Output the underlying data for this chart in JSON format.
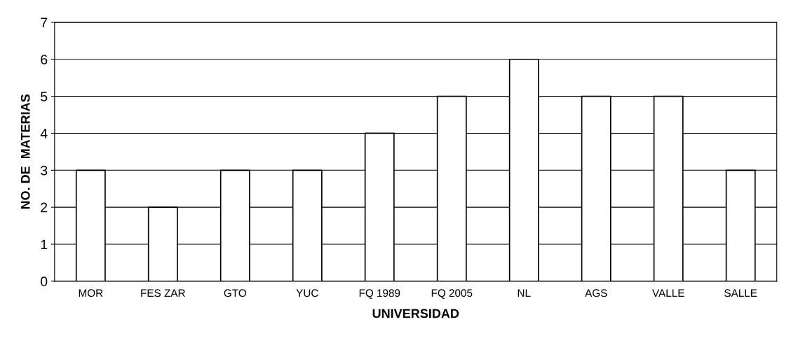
{
  "chart_data": {
    "type": "bar",
    "xlabel": "UNIVERSIDAD",
    "ylabel": "NO. DE  MATERIAS",
    "categories": [
      "MOR",
      "FES ZAR",
      "GTO",
      "YUC",
      "FQ 1989",
      "FQ 2005",
      "NL",
      "AGS",
      "VALLE",
      "SALLE"
    ],
    "values": [
      3,
      2,
      3,
      3,
      4,
      5,
      6,
      5,
      5,
      3
    ],
    "color": "#ffffff",
    "ylim": [
      0,
      7
    ],
    "yticks": [
      0,
      1,
      2,
      3,
      4,
      5,
      6,
      7
    ],
    "grid": "y",
    "legend": false
  }
}
